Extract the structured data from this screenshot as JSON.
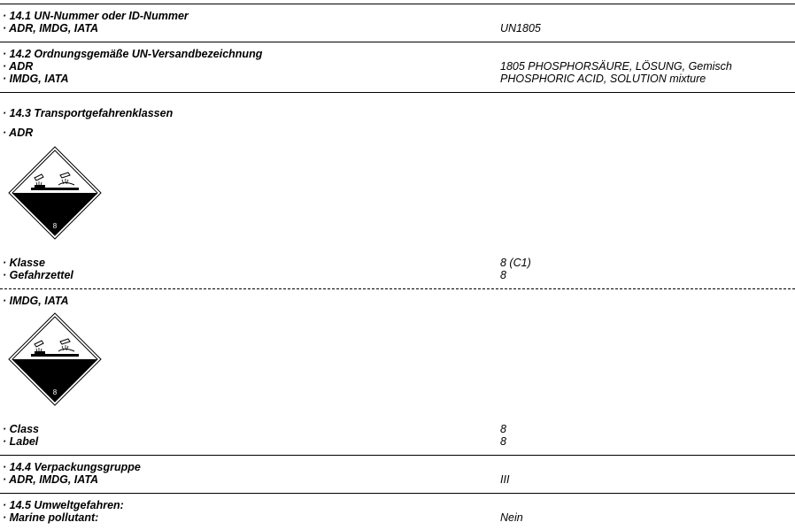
{
  "s141": {
    "heading": "· 14.1 UN-Nummer oder ID-Nummer",
    "label": "· ADR, IMDG, IATA",
    "value": "UN1805"
  },
  "s142": {
    "heading": "· 14.2 Ordnungsgemäße UN-Versandbezeichnung",
    "adr_label": "· ADR",
    "adr_value": "1805 PHOSPHORSÄURE, LÖSUNG, Gemisch",
    "imdg_label": "· IMDG, IATA",
    "imdg_value": "PHOSPHORIC ACID, SOLUTION mixture"
  },
  "s143": {
    "heading": "· 14.3 Transportgefahrenklassen",
    "adr": {
      "label": "· ADR",
      "pictogram_icon": "corrosive-class-8-icon",
      "pictogram_number": "8",
      "klasse_label": "· Klasse",
      "klasse_value": "8 (C1)",
      "gefahrzettel_label": "· Gefahrzettel",
      "gefahrzettel_value": "8"
    },
    "imdg": {
      "label": "· IMDG, IATA",
      "pictogram_icon": "corrosive-class-8-icon",
      "pictogram_number": "8",
      "class_label": "· Class",
      "class_value": "8",
      "label_label": "· Label",
      "label_value": "8"
    }
  },
  "s144": {
    "heading": "· 14.4 Verpackungsgruppe",
    "label": "· ADR, IMDG, IATA",
    "value": "III"
  },
  "s145": {
    "heading": "· 14.5 Umweltgefahren:",
    "label": "· Marine pollutant:",
    "value": "Nein"
  }
}
